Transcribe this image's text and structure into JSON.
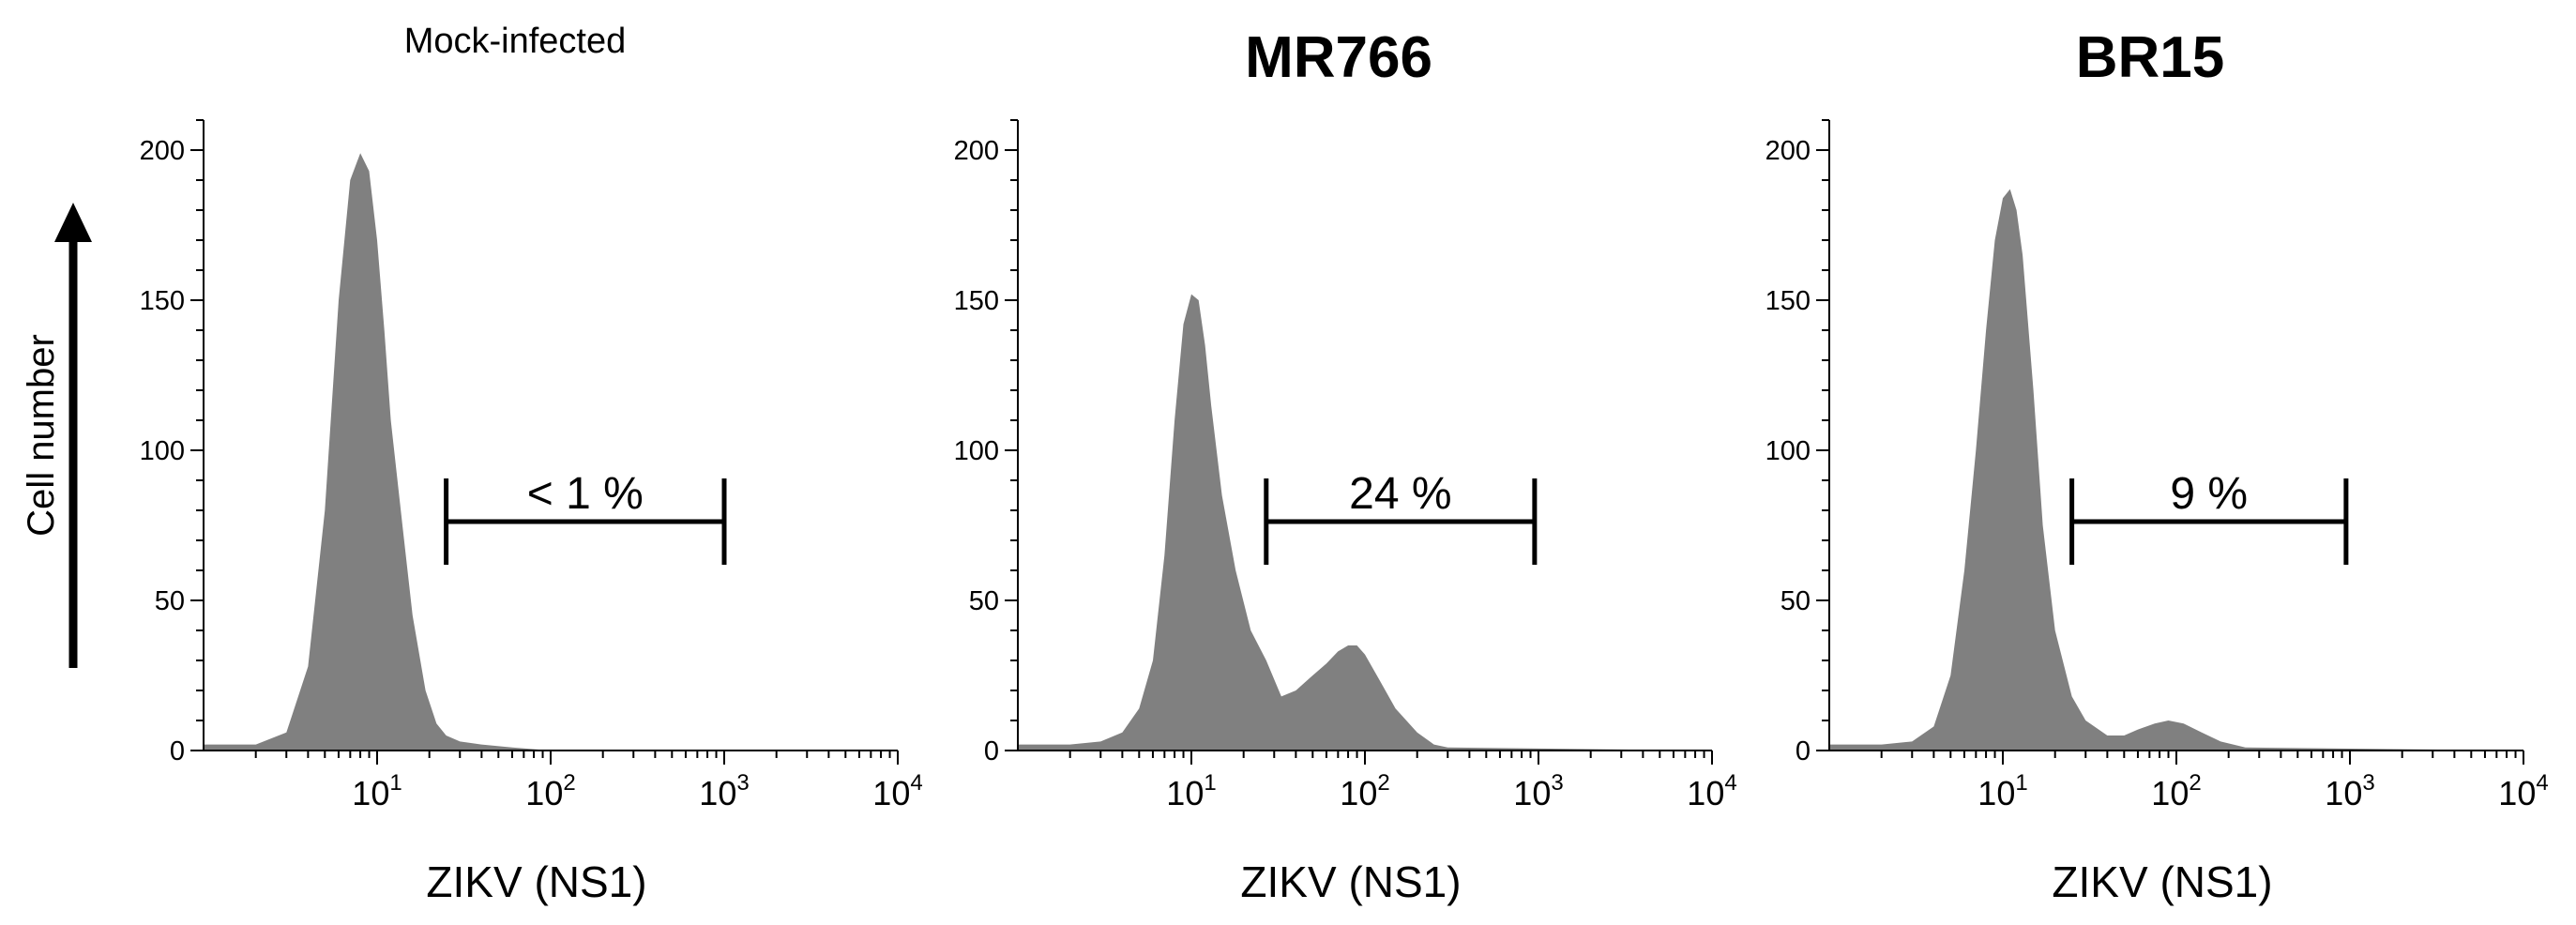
{
  "y_axis_label": "Cell number",
  "chart_data": [
    {
      "type": "area",
      "title": "Mock-infected",
      "title_style": "plain",
      "xlabel": "ZIKV (NS1)",
      "x_scale": "log",
      "xlim": [
        1,
        10000
      ],
      "ylim": [
        0,
        200
      ],
      "yticks": [
        0,
        50,
        100,
        150,
        200
      ],
      "xticks": [
        {
          "base": "10",
          "exp": "1",
          "value": 10
        },
        {
          "base": "10",
          "exp": "2",
          "value": 100
        },
        {
          "base": "10",
          "exp": "3",
          "value": 1000
        },
        {
          "base": "10",
          "exp": "4",
          "value": 10000
        }
      ],
      "fill_color": "#808080",
      "gate": {
        "label": "< 1 %",
        "x_start": 25,
        "x_end": 1000
      },
      "x": [
        1.0,
        2.0,
        3.0,
        4.0,
        5.0,
        6.0,
        7.0,
        8.0,
        9.0,
        10.0,
        11.0,
        12.0,
        14.0,
        16.0,
        19.0,
        22.0,
        25.0,
        30.0,
        40.0,
        60.0,
        100.0,
        200.0,
        10000.0
      ],
      "values": [
        2,
        2,
        6,
        28,
        80,
        150,
        190,
        199,
        193,
        170,
        140,
        110,
        75,
        45,
        20,
        9,
        5,
        3,
        2,
        1,
        0,
        0,
        0
      ]
    },
    {
      "type": "area",
      "title": "MR766",
      "title_style": "bold",
      "xlabel": "ZIKV (NS1)",
      "x_scale": "log",
      "xlim": [
        1,
        10000
      ],
      "ylim": [
        0,
        200
      ],
      "yticks": [
        0,
        50,
        100,
        150,
        200
      ],
      "xticks": [
        {
          "base": "10",
          "exp": "1",
          "value": 10
        },
        {
          "base": "10",
          "exp": "2",
          "value": 100
        },
        {
          "base": "10",
          "exp": "3",
          "value": 1000
        },
        {
          "base": "10",
          "exp": "4",
          "value": 10000
        }
      ],
      "fill_color": "#808080",
      "gate": {
        "label": "24 %",
        "x_start": 27,
        "x_end": 950
      },
      "x": [
        1.0,
        2.0,
        3.0,
        4.0,
        5.0,
        6.0,
        7.0,
        8.0,
        9.0,
        10.0,
        11.0,
        12.0,
        13.0,
        15.0,
        18.0,
        22.0,
        27.0,
        33.0,
        40.0,
        50.0,
        60.0,
        70.0,
        80.0,
        90.0,
        100.0,
        120.0,
        150.0,
        200.0,
        250.0,
        300.0,
        10000.0
      ],
      "values": [
        2,
        2,
        3,
        6,
        14,
        30,
        65,
        110,
        142,
        152,
        150,
        135,
        115,
        85,
        60,
        40,
        30,
        18,
        20,
        25,
        29,
        33,
        35,
        35,
        32,
        24,
        14,
        6,
        2,
        1,
        0
      ]
    },
    {
      "type": "area",
      "title": "BR15",
      "title_style": "bold",
      "xlabel": "ZIKV (NS1)",
      "x_scale": "log",
      "xlim": [
        1,
        10000
      ],
      "ylim": [
        0,
        200
      ],
      "yticks": [
        0,
        50,
        100,
        150,
        200
      ],
      "xticks": [
        {
          "base": "10",
          "exp": "1",
          "value": 10
        },
        {
          "base": "10",
          "exp": "2",
          "value": 100
        },
        {
          "base": "10",
          "exp": "3",
          "value": 1000
        },
        {
          "base": "10",
          "exp": "4",
          "value": 10000
        }
      ],
      "fill_color": "#808080",
      "gate": {
        "label": "9 %",
        "x_start": 25,
        "x_end": 950
      },
      "x": [
        1.0,
        2.0,
        3.0,
        4.0,
        5.0,
        6.0,
        7.0,
        8.0,
        9.0,
        10.0,
        11.0,
        12.0,
        13.0,
        15.0,
        17.0,
        20.0,
        25.0,
        30.0,
        40.0,
        50.0,
        60.0,
        75.0,
        90.0,
        110.0,
        140.0,
        180.0,
        250.0,
        10000.0
      ],
      "values": [
        2,
        2,
        3,
        8,
        25,
        60,
        100,
        140,
        170,
        184,
        187,
        180,
        165,
        120,
        75,
        40,
        18,
        10,
        5,
        5,
        7,
        9,
        10,
        9,
        6,
        3,
        1,
        0
      ]
    }
  ]
}
